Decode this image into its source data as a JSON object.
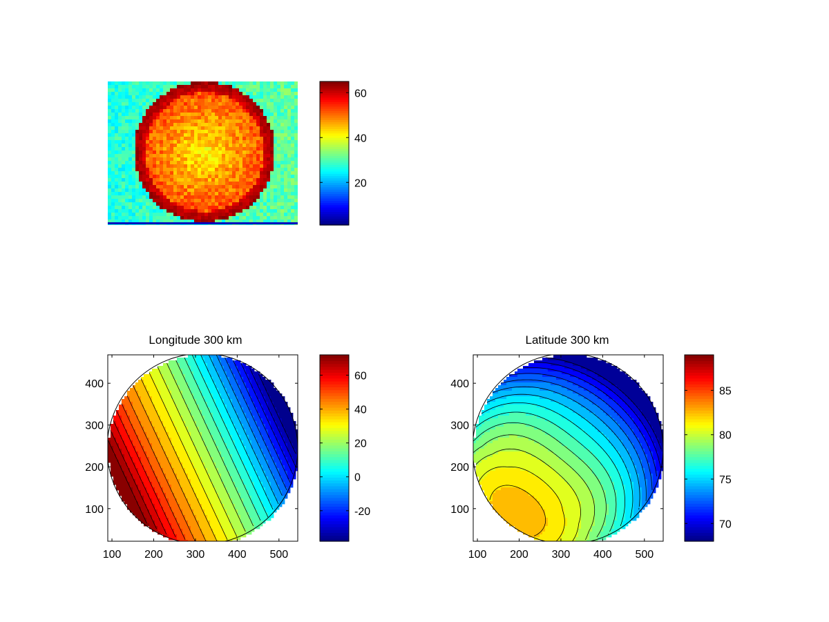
{
  "figure": {
    "background": "#ffffff",
    "colormap": "jet"
  },
  "chart_data": [
    {
      "type": "heatmap",
      "title": "",
      "description_kind": "image",
      "axes_visible": false,
      "colorbar": {
        "min": 1,
        "max": 65,
        "ticks": [
          20,
          40,
          60
        ]
      },
      "regions": {
        "background_value": 27,
        "disk_value": 52,
        "disk_edge_value": 63
      }
    },
    {
      "type": "heatmap",
      "title": "Longitude 300 km",
      "xlabel": "",
      "ylabel": "",
      "xlim": [
        90,
        545
      ],
      "ylim": [
        22,
        468
      ],
      "xticks": [
        100,
        200,
        300,
        400,
        500
      ],
      "yticks": [
        100,
        200,
        300,
        400
      ],
      "colorbar": {
        "min": -38,
        "max": 72,
        "ticks": [
          -20,
          0,
          20,
          40,
          60
        ]
      },
      "contour_levels": [
        -35,
        -30,
        -25,
        -20,
        -15,
        -10,
        -5,
        0,
        5,
        10,
        15,
        20,
        25,
        30,
        35,
        40,
        45,
        50,
        55,
        60,
        65,
        70
      ]
    },
    {
      "type": "heatmap",
      "title": "Latitude 300 km",
      "xlabel": "",
      "ylabel": "",
      "xlim": [
        90,
        545
      ],
      "ylim": [
        22,
        468
      ],
      "xticks": [
        100,
        200,
        300,
        400,
        500
      ],
      "yticks": [
        100,
        200,
        300,
        400
      ],
      "colorbar": {
        "min": 68,
        "max": 89,
        "ticks": [
          70,
          75,
          80,
          85
        ]
      },
      "contour_levels": [
        69,
        70,
        71,
        72,
        73,
        74,
        75,
        76,
        77,
        78,
        79,
        80,
        81,
        82,
        83,
        84,
        85,
        86,
        87,
        88
      ]
    }
  ]
}
